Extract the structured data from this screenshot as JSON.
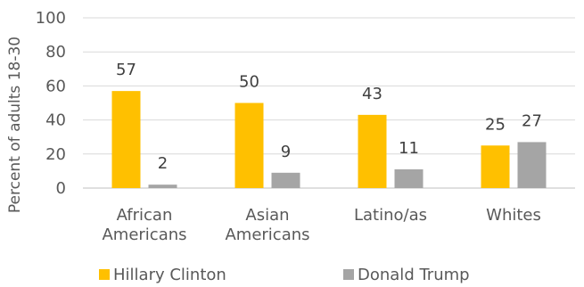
{
  "chart_data": {
    "type": "bar",
    "title": "",
    "ylabel": "Percent of adults 18-30",
    "xlabel": "",
    "ylim": [
      0,
      100
    ],
    "yticks": [
      0,
      20,
      40,
      60,
      80,
      100
    ],
    "grid": true,
    "legend_position": "bottom",
    "categories": [
      [
        "African",
        "Americans"
      ],
      [
        "Asian",
        "Americans"
      ],
      [
        "Latino/as"
      ],
      [
        "Whites"
      ]
    ],
    "series": [
      {
        "name": "Hillary Clinton",
        "color": "#FFC000",
        "values": [
          57,
          50,
          43,
          25
        ]
      },
      {
        "name": "Donald Trump",
        "color": "#A5A5A5",
        "values": [
          2,
          9,
          11,
          27
        ]
      }
    ]
  }
}
